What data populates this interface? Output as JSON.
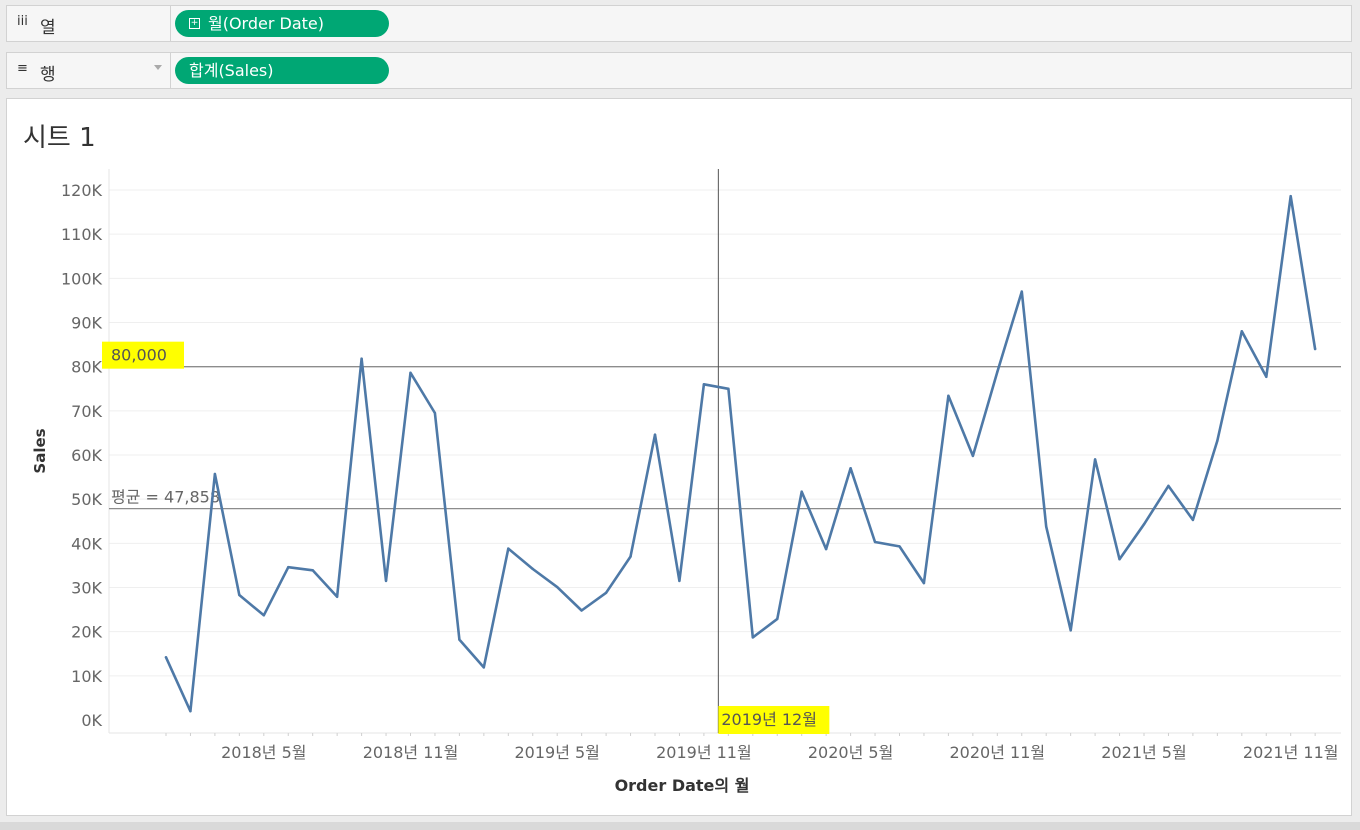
{
  "columns_shelf": {
    "icon": "iii",
    "label": "열",
    "pill": "월(Order Date)"
  },
  "rows_shelf": {
    "icon": "≡",
    "label": "행",
    "pill": "합계(Sales)"
  },
  "sheet": {
    "title": "시트 1"
  },
  "chart_data": {
    "type": "line",
    "title": "",
    "xlabel": "Order Date의 월",
    "ylabel": "Sales",
    "ylim": [
      0,
      120000
    ],
    "yticks": [
      0,
      10000,
      20000,
      30000,
      40000,
      50000,
      60000,
      70000,
      80000,
      90000,
      100000,
      110000,
      120000
    ],
    "ytick_labels": [
      "0K",
      "10K",
      "20K",
      "30K",
      "40K",
      "50K",
      "60K",
      "70K",
      "80K",
      "90K",
      "100K",
      "110K",
      "120K"
    ],
    "x": [
      "2018-01",
      "2018-02",
      "2018-03",
      "2018-04",
      "2018-05",
      "2018-06",
      "2018-07",
      "2018-08",
      "2018-09",
      "2018-10",
      "2018-11",
      "2018-12",
      "2019-01",
      "2019-02",
      "2019-03",
      "2019-04",
      "2019-05",
      "2019-06",
      "2019-07",
      "2019-08",
      "2019-09",
      "2019-10",
      "2019-11",
      "2019-12",
      "2020-01",
      "2020-02",
      "2020-03",
      "2020-04",
      "2020-05",
      "2020-06",
      "2020-07",
      "2020-08",
      "2020-09",
      "2020-10",
      "2020-11",
      "2020-12",
      "2021-01",
      "2021-02",
      "2021-03",
      "2021-04",
      "2021-05",
      "2021-06",
      "2021-07",
      "2021-08",
      "2021-09",
      "2021-10",
      "2021-11",
      "2021-12"
    ],
    "xticks": [
      "2018-05",
      "2018-11",
      "2019-05",
      "2019-11",
      "2020-05",
      "2020-11",
      "2021-05",
      "2021-11"
    ],
    "xtick_labels": [
      "2018년 5월",
      "2018년 11월",
      "2019년 5월",
      "2019년 11월",
      "2020년 5월",
      "2020년 11월",
      "2021년 5월",
      "2021년 11월"
    ],
    "series": [
      {
        "name": "",
        "color": "#4e79a7",
        "values": [
          14200,
          2000,
          55700,
          28300,
          23700,
          34600,
          33900,
          27900,
          81800,
          31500,
          78600,
          69500,
          18200,
          11900,
          38800,
          34200,
          30100,
          24800,
          28800,
          37000,
          64600,
          31500,
          76000,
          75000,
          18700,
          22900,
          51700,
          38700,
          57000,
          40300,
          39300,
          31000,
          73400,
          59800,
          78800,
          97000,
          43800,
          20300,
          59000,
          36400,
          44300,
          53000,
          45300,
          63200,
          88000,
          77700,
          118600,
          84000
        ]
      }
    ],
    "reference_lines": [
      {
        "kind": "constant",
        "value": 80000,
        "label": "80,000",
        "highlight": "#ffff00"
      },
      {
        "kind": "average",
        "value": 47858,
        "label": "평균 = 47,858"
      }
    ],
    "marker": {
      "x": "2019-12",
      "label": "2019년 12월",
      "highlight": "#ffff00"
    },
    "grid": true
  }
}
